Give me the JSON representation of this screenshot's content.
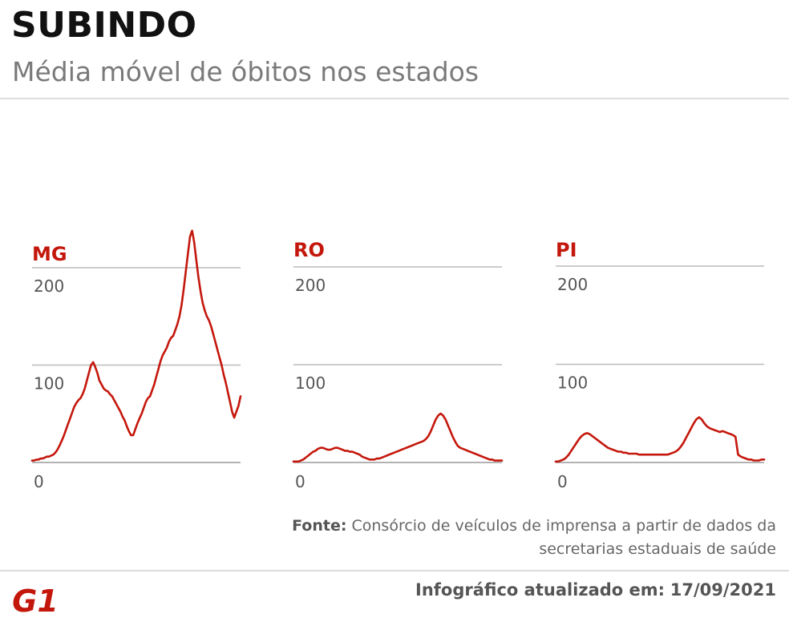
{
  "header": {
    "title": "SUBINDO",
    "subtitle": "Média móvel de óbitos nos estados"
  },
  "footer": {
    "source_label": "Fonte:",
    "source_text": "Consórcio de veículos de imprensa a partir de dados da secretarias estaduais de saúde",
    "updated_label": "Infográfico atualizado em:",
    "updated_date": "17/09/2021",
    "logo_text": "G1",
    "logo_color": "#c4170c"
  },
  "colors": {
    "line": "#c4170c",
    "grid": "#bbbbbb",
    "tick_text": "#555555"
  },
  "chart_data": [
    {
      "type": "line",
      "title": "MG",
      "ylim": [
        0,
        200
      ],
      "yticks": [
        0,
        100,
        200
      ],
      "grid": true,
      "series": [
        {
          "values": [
            2,
            2,
            3,
            3,
            4,
            4,
            5,
            6,
            6,
            7,
            8,
            10,
            13,
            17,
            22,
            27,
            33,
            39,
            45,
            51,
            57,
            61,
            64,
            66,
            70,
            76,
            84,
            92,
            100,
            103,
            98,
            92,
            84,
            80,
            76,
            74,
            73,
            70,
            68,
            64,
            60,
            56,
            52,
            47,
            43,
            37,
            32,
            28,
            28,
            34,
            40,
            45,
            50,
            56,
            62,
            66,
            68,
            74,
            80,
            88,
            96,
            104,
            110,
            114,
            118,
            124,
            128,
            130,
            136,
            142,
            150,
            162,
            178,
            196,
            214,
            232,
            238,
            226,
            208,
            190,
            176,
            164,
            156,
            150,
            146,
            140,
            132,
            124,
            116,
            108,
            100,
            90,
            82,
            72,
            62,
            52,
            46,
            52,
            58,
            68
          ]
        }
      ]
    },
    {
      "type": "line",
      "title": "RO",
      "ylim": [
        0,
        200
      ],
      "yticks": [
        0,
        100,
        200
      ],
      "grid": true,
      "series": [
        {
          "values": [
            1,
            1,
            1,
            2,
            3,
            5,
            7,
            9,
            11,
            12,
            14,
            15,
            15,
            14,
            13,
            13,
            14,
            15,
            15,
            14,
            13,
            12,
            12,
            11,
            11,
            10,
            9,
            8,
            6,
            5,
            4,
            3,
            3,
            3,
            4,
            4,
            5,
            6,
            7,
            8,
            9,
            10,
            11,
            12,
            13,
            14,
            15,
            16,
            17,
            18,
            19,
            20,
            21,
            22,
            24,
            27,
            32,
            38,
            44,
            48,
            50,
            48,
            44,
            38,
            32,
            26,
            21,
            17,
            15,
            14,
            13,
            12,
            11,
            10,
            9,
            8,
            7,
            6,
            5,
            4,
            3,
            3,
            2,
            2,
            2,
            2
          ]
        }
      ]
    },
    {
      "type": "line",
      "title": "PI",
      "ylim": [
        0,
        200
      ],
      "yticks": [
        0,
        100,
        200
      ],
      "grid": true,
      "series": [
        {
          "values": [
            1,
            1,
            2,
            3,
            5,
            8,
            12,
            16,
            20,
            24,
            27,
            29,
            30,
            29,
            27,
            25,
            23,
            21,
            19,
            17,
            15,
            14,
            13,
            12,
            11,
            11,
            10,
            10,
            9,
            9,
            9,
            9,
            8,
            8,
            8,
            8,
            8,
            8,
            8,
            8,
            8,
            8,
            8,
            8,
            9,
            10,
            11,
            13,
            16,
            20,
            25,
            30,
            35,
            40,
            44,
            46,
            44,
            40,
            37,
            35,
            34,
            33,
            32,
            31,
            32,
            31,
            30,
            29,
            28,
            26,
            8,
            6,
            5,
            4,
            3,
            3,
            2,
            2,
            2,
            3,
            3
          ]
        }
      ]
    }
  ]
}
